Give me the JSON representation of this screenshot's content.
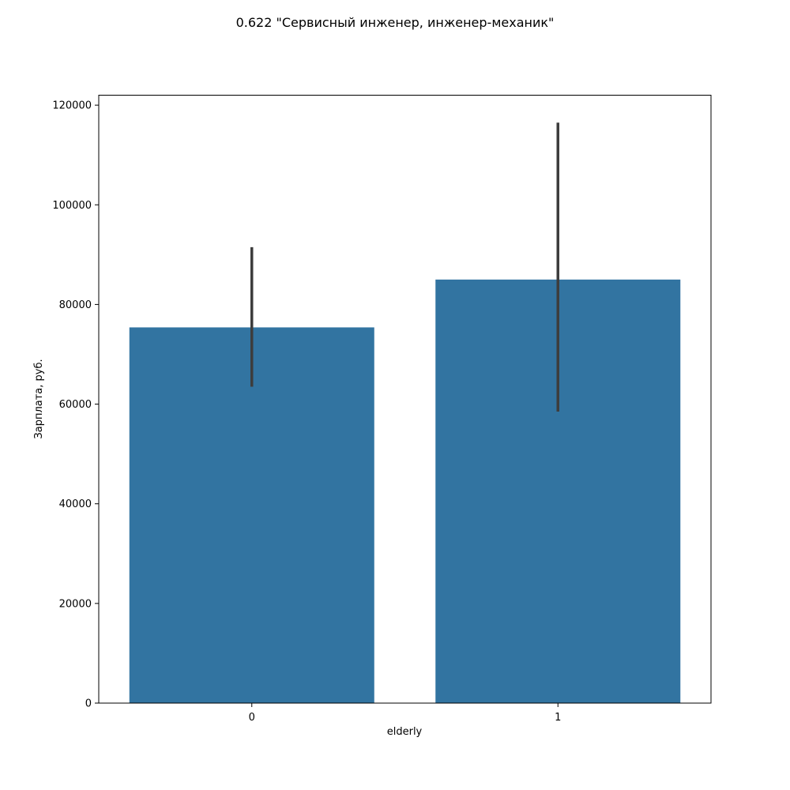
{
  "chart_data": {
    "type": "bar",
    "title": "0.622 \"Сервисный инженер, инженер-механик\"",
    "xlabel": "elderly",
    "ylabel": "Зарплата, руб.",
    "categories": [
      "0",
      "1"
    ],
    "values": [
      75400,
      85000
    ],
    "error_bars": [
      {
        "low": 63500,
        "high": 91500
      },
      {
        "low": 58500,
        "high": 116500
      }
    ],
    "ylim": [
      0,
      122000
    ],
    "yticks": [
      0,
      20000,
      40000,
      60000,
      80000,
      100000,
      120000
    ],
    "ytick_labels": [
      "0",
      "20000",
      "40000",
      "60000",
      "80000",
      "100000",
      "120000"
    ],
    "grid": false,
    "bar_color": "#3274a1",
    "error_color": "#3d3d3d"
  }
}
